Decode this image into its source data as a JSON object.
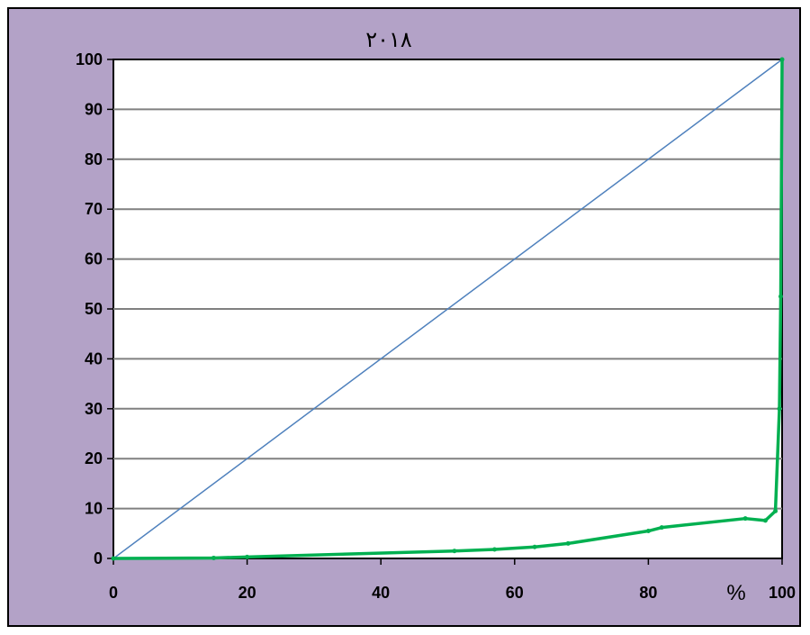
{
  "chart_data": {
    "type": "line",
    "title": "٢٠١٨",
    "x_unit_label": "%",
    "xlim": [
      0,
      100
    ],
    "ylim": [
      0,
      100
    ],
    "x_ticks": [
      "0",
      "20",
      "40",
      "60",
      "80",
      "100"
    ],
    "y_ticks": [
      "0",
      "10",
      "20",
      "30",
      "40",
      "50",
      "60",
      "70",
      "80",
      "90",
      "100"
    ],
    "grid": "horizontal",
    "legend": "none",
    "colors": {
      "background": "#b3a2c7",
      "plot_area": "#ffffff",
      "equality_line": "#4f81bd",
      "curve": "#00b050"
    },
    "series": [
      {
        "x": [
          0,
          100
        ],
        "y": [
          0,
          100
        ]
      },
      {
        "x": [
          0,
          15,
          20,
          51,
          57,
          63,
          68,
          80,
          82,
          94.5,
          97.5,
          99,
          99.6,
          99.8,
          100
        ],
        "y": [
          0,
          0.1,
          0.3,
          1.5,
          1.8,
          2.3,
          3,
          5.5,
          6.2,
          8,
          7.6,
          9.5,
          30,
          52.5,
          100
        ]
      }
    ]
  }
}
